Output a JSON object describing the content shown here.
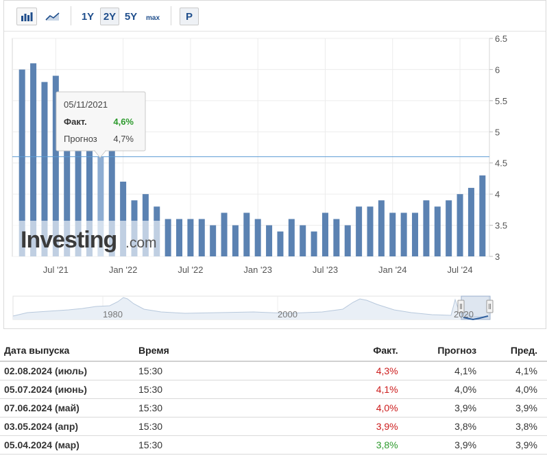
{
  "toolbar": {
    "range_1y": "1Y",
    "range_2y": "2Y",
    "range_5y": "5Y",
    "range_max": "max",
    "p_button": "P",
    "bar_icon": "bar-chart-icon",
    "line_icon": "area-chart-icon"
  },
  "colors": {
    "bar": "#5b82b2",
    "bar_light": "#8eadd2",
    "up": "#cc1b1b",
    "down": "#2c9a2c",
    "guide": "#5b9bd5"
  },
  "tooltip": {
    "date": "05/11/2021",
    "actual_label": "Факт.",
    "actual_value": "4,6%",
    "forecast_label": "Прогноз",
    "forecast_value": "4,7%"
  },
  "watermark": {
    "brand": "Investing",
    "suffix": ".com"
  },
  "navigator": {
    "labels": [
      "1980",
      "2000",
      "2020"
    ]
  },
  "chart_data": {
    "type": "bar",
    "x_tick_labels": [
      "Jul '21",
      "Jan '22",
      "Jul '22",
      "Jan '23",
      "Jul '23",
      "Jan '24",
      "Jul '24"
    ],
    "y_ticks": [
      "3",
      "3.5",
      "4",
      "4.5",
      "5",
      "5.5",
      "6",
      "6.5"
    ],
    "ylim": [
      3,
      6.5
    ],
    "values": [
      6.0,
      6.1,
      5.8,
      5.9,
      4.9,
      4.7,
      4.8,
      4.6,
      4.7,
      4.2,
      3.9,
      4.0,
      3.8,
      3.6,
      3.6,
      3.6,
      3.6,
      3.5,
      3.7,
      3.5,
      3.7,
      3.6,
      3.5,
      3.4,
      3.6,
      3.5,
      3.4,
      3.7,
      3.6,
      3.5,
      3.8,
      3.8,
      3.9,
      3.7,
      3.7,
      3.7,
      3.9,
      3.8,
      3.9,
      4.0,
      4.1,
      4.3
    ],
    "highlight_index": 7,
    "guide_value": 4.6,
    "grid": true
  },
  "table": {
    "headers": [
      "Дата выпуска",
      "Время",
      "Факт.",
      "Прогноз",
      "Пред."
    ],
    "rows": [
      {
        "date": "02.08.2024 (июль)",
        "time": "15:30",
        "actual": "4,3%",
        "forecast": "4,1%",
        "previous": "4,1%",
        "color": "#cc1b1b"
      },
      {
        "date": "05.07.2024 (июнь)",
        "time": "15:30",
        "actual": "4,1%",
        "forecast": "4,0%",
        "previous": "4,0%",
        "color": "#cc1b1b"
      },
      {
        "date": "07.06.2024 (май)",
        "time": "15:30",
        "actual": "4,0%",
        "forecast": "3,9%",
        "previous": "3,9%",
        "color": "#cc1b1b"
      },
      {
        "date": "03.05.2024 (апр)",
        "time": "15:30",
        "actual": "3,9%",
        "forecast": "3,8%",
        "previous": "3,8%",
        "color": "#cc1b1b"
      },
      {
        "date": "05.04.2024 (мар)",
        "time": "15:30",
        "actual": "3,8%",
        "forecast": "3,9%",
        "previous": "3,9%",
        "color": "#2c9a2c"
      }
    ]
  }
}
